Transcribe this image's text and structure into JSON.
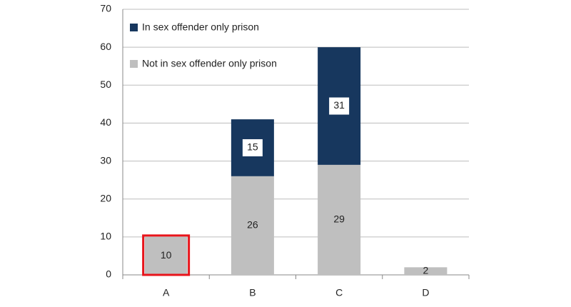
{
  "chart_data": {
    "type": "stacked_bar",
    "categories": [
      "A",
      "B",
      "C",
      "D"
    ],
    "series": [
      {
        "name": "Not in sex offender only prison",
        "color": "#bfbfbf",
        "values": [
          10,
          26,
          29,
          2
        ]
      },
      {
        "name": "In sex offender only prison",
        "color": "#17375e",
        "values": [
          null,
          15,
          31,
          null
        ]
      }
    ],
    "ylim": [
      0,
      70
    ],
    "yticks": [
      0,
      10,
      20,
      30,
      40,
      50,
      60,
      70
    ],
    "grid": true,
    "legend": "upper left",
    "highlight": {
      "category": "A",
      "color": "#e8141b"
    }
  }
}
